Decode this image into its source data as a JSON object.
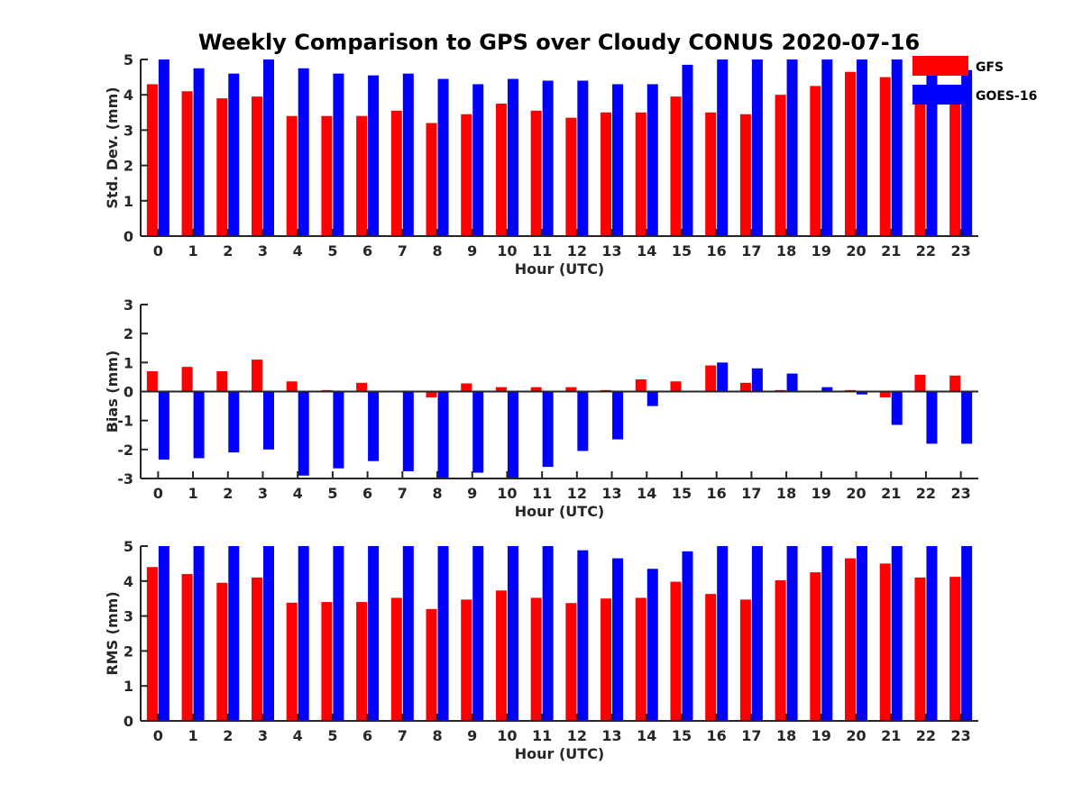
{
  "chart_data": {
    "title": "Weekly Comparison to GPS over Cloudy CONUS 2020-07-16",
    "legend": {
      "placement": "top-right",
      "entries": [
        {
          "name": "GFS",
          "color": "#ff0000"
        },
        {
          "name": "GOES-16",
          "color": "#0000ff"
        }
      ]
    },
    "panels": [
      {
        "type": "bar",
        "categories": [
          "0",
          "1",
          "2",
          "3",
          "4",
          "5",
          "6",
          "7",
          "8",
          "9",
          "10",
          "11",
          "12",
          "13",
          "14",
          "15",
          "16",
          "17",
          "18",
          "19",
          "20",
          "21",
          "22",
          "23"
        ],
        "xlabel": "Hour (UTC)",
        "ylabel": "Std. Dev. (mm)",
        "ylim": [
          0,
          5
        ],
        "yticks": [
          "0",
          "1",
          "2",
          "3",
          "4",
          "5"
        ],
        "grid": false,
        "series": [
          {
            "name": "GFS",
            "color": "#ff0000",
            "values": [
              4.3,
              4.1,
              3.9,
              3.95,
              3.4,
              3.4,
              3.4,
              3.55,
              3.2,
              3.45,
              3.75,
              3.55,
              3.35,
              3.5,
              3.5,
              3.95,
              3.5,
              3.45,
              4.0,
              4.25,
              4.65,
              4.5,
              4.05,
              3.9
            ]
          },
          {
            "name": "GOES-16",
            "color": "#0000ff",
            "values": [
              5.0,
              4.75,
              4.6,
              5.0,
              4.75,
              4.6,
              4.55,
              4.6,
              4.45,
              4.3,
              4.45,
              4.4,
              4.4,
              4.3,
              4.3,
              4.85,
              5.0,
              5.0,
              5.0,
              5.0,
              5.0,
              5.0,
              4.8,
              4.7
            ]
          }
        ]
      },
      {
        "type": "bar",
        "categories": [
          "0",
          "1",
          "2",
          "3",
          "4",
          "5",
          "6",
          "7",
          "8",
          "9",
          "10",
          "11",
          "12",
          "13",
          "14",
          "15",
          "16",
          "17",
          "18",
          "19",
          "20",
          "21",
          "22",
          "23"
        ],
        "xlabel": "Hour (UTC)",
        "ylabel": "Bias (mm)",
        "ylim": [
          -3,
          3
        ],
        "yticks": [
          "-3",
          "-2",
          "-1",
          "0",
          "1",
          "2",
          "3"
        ],
        "grid": false,
        "series": [
          {
            "name": "GFS",
            "color": "#ff0000",
            "values": [
              0.7,
              0.85,
              0.7,
              1.1,
              0.35,
              0.05,
              0.3,
              0.02,
              -0.2,
              0.28,
              0.15,
              0.15,
              0.15,
              0.05,
              0.42,
              0.35,
              0.9,
              0.3,
              0.05,
              0.0,
              0.05,
              -0.2,
              0.58,
              0.55
            ]
          },
          {
            "name": "GOES-16",
            "color": "#0000ff",
            "values": [
              -2.35,
              -2.3,
              -2.1,
              -2.0,
              -2.9,
              -2.65,
              -2.4,
              -2.75,
              -3.0,
              -2.8,
              -3.0,
              -2.6,
              -2.05,
              -1.65,
              -0.5,
              0.0,
              1.0,
              0.8,
              0.62,
              0.15,
              -0.1,
              -1.15,
              -1.8,
              -1.8
            ]
          }
        ]
      },
      {
        "type": "bar",
        "categories": [
          "0",
          "1",
          "2",
          "3",
          "4",
          "5",
          "6",
          "7",
          "8",
          "9",
          "10",
          "11",
          "12",
          "13",
          "14",
          "15",
          "16",
          "17",
          "18",
          "19",
          "20",
          "21",
          "22",
          "23"
        ],
        "xlabel": "Hour (UTC)",
        "ylabel": "RMS (mm)",
        "ylim": [
          0,
          5
        ],
        "yticks": [
          "0",
          "1",
          "2",
          "3",
          "4",
          "5"
        ],
        "grid": false,
        "series": [
          {
            "name": "GFS",
            "color": "#ff0000",
            "values": [
              4.4,
              4.2,
              3.95,
              4.1,
              3.38,
              3.4,
              3.4,
              3.52,
              3.2,
              3.47,
              3.73,
              3.52,
              3.37,
              3.5,
              3.52,
              3.98,
              3.63,
              3.47,
              4.02,
              4.25,
              4.65,
              4.5,
              4.1,
              4.12
            ]
          },
          {
            "name": "GOES-16",
            "color": "#0000ff",
            "values": [
              5.0,
              5.0,
              5.0,
              5.0,
              5.0,
              5.0,
              5.0,
              5.0,
              5.0,
              5.0,
              5.0,
              5.0,
              4.88,
              4.65,
              4.35,
              4.85,
              5.0,
              5.0,
              5.0,
              5.0,
              5.0,
              5.0,
              5.0,
              5.0
            ]
          }
        ]
      }
    ]
  }
}
